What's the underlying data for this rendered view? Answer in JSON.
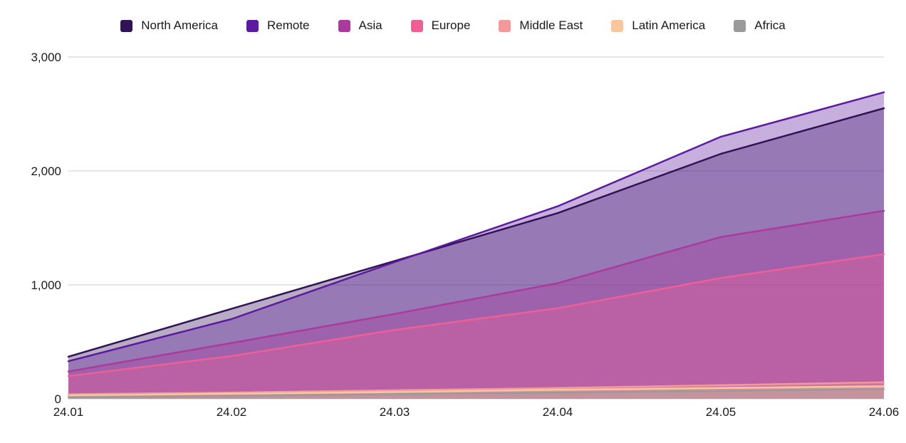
{
  "chart_data": {
    "type": "area",
    "mode": "overlapping-translucent",
    "title": "",
    "xlabel": "",
    "ylabel": "",
    "grid": true,
    "legend_position": "top",
    "ylim": [
      0,
      3000
    ],
    "y_ticks": [
      {
        "value": 0,
        "label": "0"
      },
      {
        "value": 1000,
        "label": "1,000"
      },
      {
        "value": 2000,
        "label": "2,000"
      },
      {
        "value": 3000,
        "label": "3,000"
      }
    ],
    "categories": [
      "24.01",
      "24.02",
      "24.03",
      "24.04",
      "24.05",
      "24.06"
    ],
    "series": [
      {
        "name": "North America",
        "color": "#321257",
        "values": [
          370,
          790,
          1210,
          1630,
          2150,
          2550
        ]
      },
      {
        "name": "Remote",
        "color": "#5c1a9e",
        "values": [
          330,
          700,
          1200,
          1690,
          2300,
          2690
        ]
      },
      {
        "name": "Asia",
        "color": "#ab3a9e",
        "values": [
          240,
          490,
          745,
          1015,
          1420,
          1650
        ]
      },
      {
        "name": "Europe",
        "color": "#ef5f96",
        "values": [
          200,
          375,
          605,
          795,
          1060,
          1270
        ]
      },
      {
        "name": "Middle East",
        "color": "#f29a9b",
        "values": [
          40,
          55,
          75,
          95,
          120,
          145
        ]
      },
      {
        "name": "Latin America",
        "color": "#f8c79f",
        "values": [
          30,
          45,
          60,
          80,
          95,
          110
        ]
      },
      {
        "name": "Africa",
        "color": "#9a9a9a",
        "values": [
          15,
          25,
          40,
          55,
          70,
          85
        ]
      }
    ]
  }
}
